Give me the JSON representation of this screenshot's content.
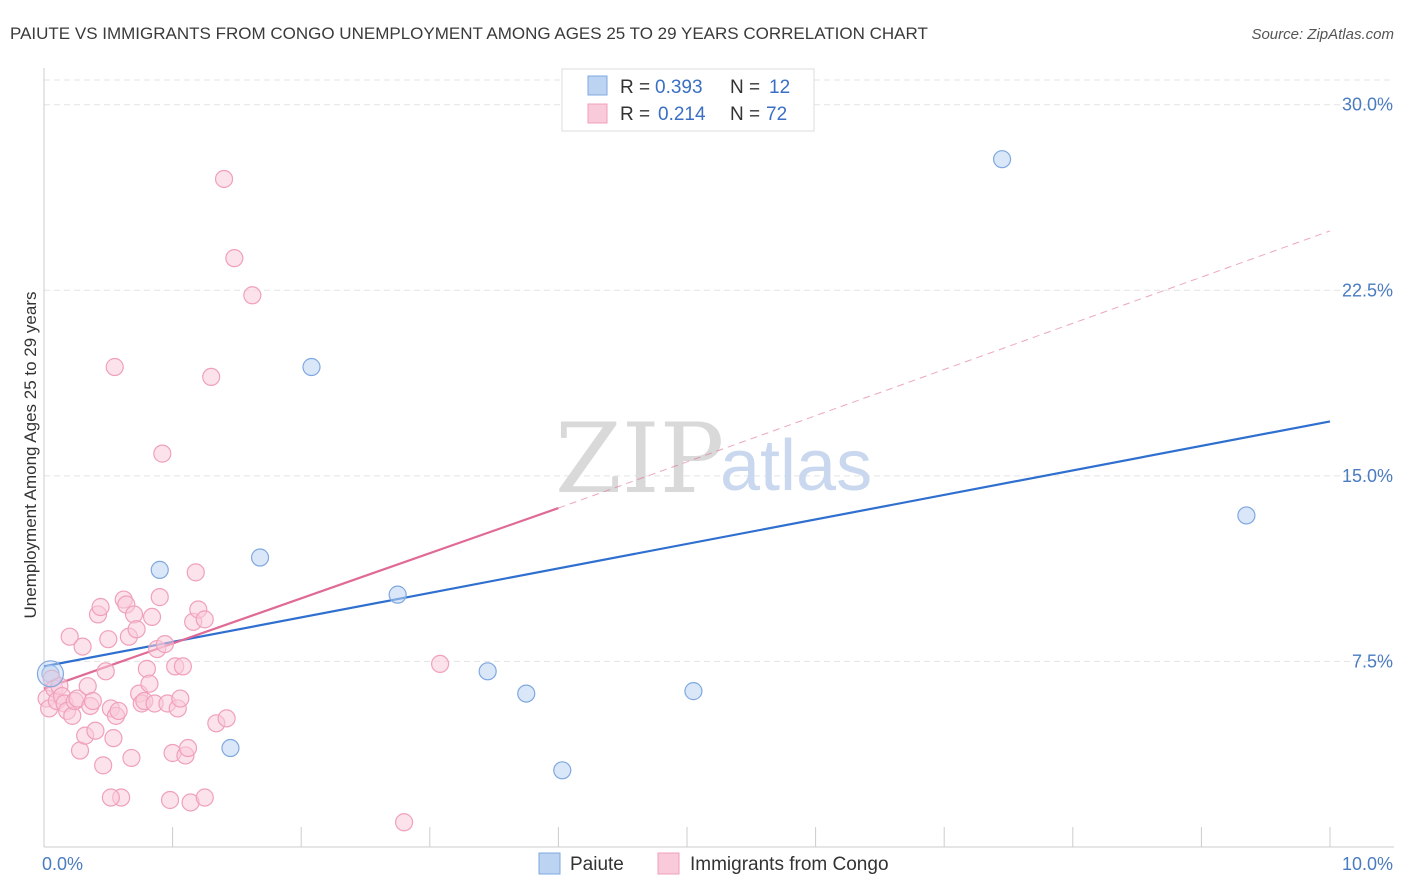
{
  "chart_data": {
    "type": "scatter",
    "title": "PAIUTE VS IMMIGRANTS FROM CONGO UNEMPLOYMENT AMONG AGES 25 TO 29 YEARS CORRELATION CHART",
    "source": "Source: ZipAtlas.com",
    "xlabel": "",
    "ylabel": "Unemployment Among Ages 25 to 29 years",
    "xlim": [
      0,
      10
    ],
    "ylim": [
      0,
      31
    ],
    "x_ticks": [
      {
        "value": 0,
        "label": "0.0%"
      },
      {
        "value": 10,
        "label": "10.0%"
      }
    ],
    "y_ticks": [
      {
        "value": 7.5,
        "label": "7.5%"
      },
      {
        "value": 15,
        "label": "15.0%"
      },
      {
        "value": 22.5,
        "label": "22.5%"
      },
      {
        "value": 30,
        "label": "30.0%"
      }
    ],
    "grid": true,
    "legend_position": "top-center",
    "watermark": {
      "zip": "ZIP",
      "atlas": "atlas"
    },
    "series": [
      {
        "name": "Paiute",
        "color": "#7fa8e0",
        "fill": "#bcd3f2",
        "line_color": "#2f6fcf",
        "R": "0.393",
        "N": "12",
        "trend": {
          "x0": 0,
          "y0": 7.3,
          "x1": 10,
          "y1": 17.2
        },
        "points": [
          [
            0.05,
            7.0
          ],
          [
            0.9,
            11.2
          ],
          [
            1.45,
            4.0
          ],
          [
            1.68,
            11.7
          ],
          [
            2.08,
            19.4
          ],
          [
            2.75,
            10.2
          ],
          [
            3.45,
            7.1
          ],
          [
            3.75,
            6.2
          ],
          [
            4.03,
            3.1
          ],
          [
            5.05,
            6.3
          ],
          [
            7.45,
            27.8
          ],
          [
            9.35,
            13.4
          ]
        ]
      },
      {
        "name": "Immigrants from Congo",
        "color": "#f0a0bb",
        "fill": "#f9cad9",
        "line_color": "#e06a96",
        "R": "0.214",
        "N": "72",
        "trend": {
          "x0": 0,
          "y0": 6.4,
          "x1": 4.0,
          "y1": 13.7
        },
        "trend_dashed": {
          "x0": 4.0,
          "y0": 13.7,
          "x1": 10,
          "y1": 24.9
        },
        "points": [
          [
            0.02,
            6.0
          ],
          [
            0.04,
            5.6
          ],
          [
            0.06,
            6.8
          ],
          [
            0.08,
            6.4
          ],
          [
            0.1,
            5.9
          ],
          [
            0.12,
            6.5
          ],
          [
            0.14,
            6.1
          ],
          [
            0.16,
            5.8
          ],
          [
            0.18,
            5.5
          ],
          [
            0.2,
            8.5
          ],
          [
            0.22,
            5.3
          ],
          [
            0.24,
            5.9
          ],
          [
            0.26,
            6.0
          ],
          [
            0.28,
            3.9
          ],
          [
            0.3,
            8.1
          ],
          [
            0.32,
            4.5
          ],
          [
            0.34,
            6.5
          ],
          [
            0.36,
            5.7
          ],
          [
            0.38,
            5.9
          ],
          [
            0.4,
            4.7
          ],
          [
            0.42,
            9.4
          ],
          [
            0.44,
            9.7
          ],
          [
            0.46,
            3.3
          ],
          [
            0.48,
            7.1
          ],
          [
            0.5,
            8.4
          ],
          [
            0.52,
            5.6
          ],
          [
            0.54,
            4.4
          ],
          [
            0.56,
            5.3
          ],
          [
            0.58,
            5.5
          ],
          [
            0.6,
            2.0
          ],
          [
            0.52,
            2.0
          ],
          [
            0.55,
            19.4
          ],
          [
            0.62,
            10.0
          ],
          [
            0.64,
            9.8
          ],
          [
            0.66,
            8.5
          ],
          [
            0.68,
            3.6
          ],
          [
            0.7,
            9.4
          ],
          [
            0.72,
            8.8
          ],
          [
            0.74,
            6.2
          ],
          [
            0.76,
            5.8
          ],
          [
            0.78,
            5.9
          ],
          [
            0.8,
            7.2
          ],
          [
            0.82,
            6.6
          ],
          [
            0.84,
            9.3
          ],
          [
            0.86,
            5.8
          ],
          [
            0.88,
            8.0
          ],
          [
            0.9,
            10.1
          ],
          [
            0.92,
            15.9
          ],
          [
            0.94,
            8.2
          ],
          [
            0.96,
            5.8
          ],
          [
            0.98,
            1.9
          ],
          [
            1.0,
            3.8
          ],
          [
            1.02,
            7.3
          ],
          [
            1.04,
            5.6
          ],
          [
            1.06,
            6.0
          ],
          [
            1.08,
            7.3
          ],
          [
            1.1,
            3.7
          ],
          [
            1.12,
            4.0
          ],
          [
            1.14,
            1.8
          ],
          [
            1.16,
            9.1
          ],
          [
            1.18,
            11.1
          ],
          [
            1.2,
            9.6
          ],
          [
            1.25,
            2.0
          ],
          [
            1.3,
            19.0
          ],
          [
            1.34,
            5.0
          ],
          [
            1.4,
            27.0
          ],
          [
            1.42,
            5.2
          ],
          [
            1.48,
            23.8
          ],
          [
            1.62,
            22.3
          ],
          [
            1.25,
            9.2
          ],
          [
            3.08,
            7.4
          ],
          [
            2.8,
            1.0
          ]
        ]
      }
    ]
  }
}
